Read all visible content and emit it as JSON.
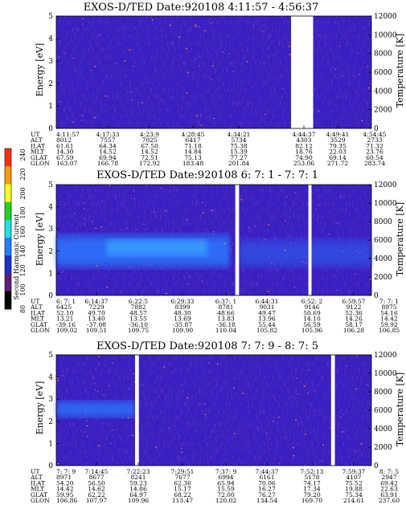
{
  "chart_data": {
    "type": "heatmap",
    "colorbar": {
      "label": "Second Harmonic Current",
      "ticks": [
        "240",
        "220",
        "200",
        "180",
        "160",
        "140",
        "120",
        "100",
        "80"
      ],
      "colors": [
        "#ff3010",
        "#ff9a10",
        "#ffff20",
        "#20d020",
        "#20e0e0",
        "#2080ff",
        "#2030c8",
        "#5a1f78",
        "#000000"
      ]
    },
    "panels": [
      {
        "title": "EXOS-D/TED   Date:920108  4:11:57 - 4:56:37",
        "ylabel": "Energy [eV]",
        "y2label": "Temperature [K]",
        "ylim": [
          0,
          5
        ],
        "y2lim": [
          0,
          12000
        ],
        "yticks": [
          "0",
          "1",
          "2",
          "3",
          "4",
          "5"
        ],
        "y2ticks": [
          "0",
          "2000",
          "4000",
          "6000",
          "8000",
          "10000",
          "12000"
        ],
        "gaps": [
          [
            0.745,
            0.815
          ]
        ],
        "band": null,
        "ephem_labels": [
          "UT",
          "ALT",
          "ILAT",
          "MLT",
          "GLAT",
          "GLON"
        ],
        "columns": [
          [
            "4:11:57",
            "8012",
            "61.61",
            "14.30",
            "67.59",
            "163.07"
          ],
          [
            "4:17:33",
            "7557",
            "64.34",
            "14.52",
            "69.94",
            "166.78"
          ],
          [
            "4:23:9",
            "7025",
            "67.50",
            "14.52",
            "72.51",
            "172.92"
          ],
          [
            "4:28:45",
            "6417",
            "71.18",
            "14.84",
            "75.13",
            "183.48"
          ],
          [
            "4:34:21",
            "5734",
            "75.38",
            "15.39",
            "77.27",
            "201.84"
          ],
          [
            "4:44:37",
            "4303",
            "82.12",
            "18.76",
            "74.90",
            "253.06"
          ],
          [
            "4:49:41",
            "3529",
            "79.35",
            "22.03",
            "69.14",
            "271.72"
          ],
          [
            "4:54:45",
            "2733",
            "71.32",
            "23.76",
            "60.54",
            "283.74"
          ]
        ]
      },
      {
        "title": "EXOS-D/TED   Date:920108  6: 7: 1 - 7: 7: 1",
        "ylabel": "Energy [eV]",
        "y2label": "Temperature [K]",
        "ylim": [
          0,
          5
        ],
        "y2lim": [
          0,
          12000
        ],
        "yticks": [
          "0",
          "1",
          "2",
          "3",
          "4",
          "5"
        ],
        "y2ticks": [
          "0",
          "2000",
          "4000",
          "6000",
          "8000",
          "10000",
          "12000"
        ],
        "gaps": [
          [
            0.568,
            0.58
          ],
          [
            0.8,
            0.81
          ]
        ],
        "band": [
          1.3,
          2.7
        ],
        "ephem_labels": [
          "UT",
          "ALT",
          "ILAT",
          "MLT",
          "GLAT",
          "GLON"
        ],
        "columns": [
          [
            "6: 7: 1",
            "6425",
            "52.10",
            "13.21",
            "-39.16",
            "109.02"
          ],
          [
            "6:14:37",
            "7229",
            "49.70",
            "13.40",
            "-37.08",
            "109.51"
          ],
          [
            "6:22:5",
            "7882",
            "48.57",
            "13.55",
            "-36.10",
            "109.75"
          ],
          [
            "6:29:33",
            "8399",
            "48.30",
            "13.69",
            "-35.87",
            "109.90"
          ],
          [
            "6:37: 1",
            "8781",
            "48.66",
            "13.83",
            "-36.18",
            "110.04"
          ],
          [
            "6:44:31",
            "9031",
            "49.47",
            "13.96",
            "55.44",
            "105.82"
          ],
          [
            "6:52: 2",
            "9146",
            "50.69",
            "14.10",
            "56.59",
            "105.96"
          ],
          [
            "6:59:57",
            "9122",
            "52.36",
            "14.26",
            "58.17",
            "106.28"
          ],
          [
            "7: 7: 1",
            "8975",
            "54.16",
            "14.42",
            "59.92",
            "106.85"
          ]
        ]
      },
      {
        "title": "EXOS-D/TED   Date:920108  7: 7: 9 - 8: 7: 5",
        "ylabel": "Energy [eV]",
        "y2label": "Temperature [K]",
        "ylim": [
          0,
          5
        ],
        "y2lim": [
          0,
          12000
        ],
        "yticks": [
          "0",
          "1",
          "2",
          "3",
          "4",
          "5"
        ],
        "y2ticks": [
          "0",
          "2000",
          "4000",
          "6000",
          "8000",
          "10000",
          "12000"
        ],
        "gaps": [
          [
            0.25,
            0.262
          ],
          [
            0.872,
            0.884
          ]
        ],
        "band": [
          2.2,
          2.9
        ],
        "ephem_labels": [
          "UT",
          "ALT",
          "ILAT",
          "MLT",
          "GLAT",
          "GLON"
        ],
        "columns": [
          [
            "7: 7: 9",
            "8971",
            "54.20",
            "14.42",
            "59.95",
            "106.86"
          ],
          [
            "7:14:45",
            "8677",
            "56.50",
            "14.62",
            "62.22",
            "107.97"
          ],
          [
            "7:22:23",
            "8241",
            "59.23",
            "14.86",
            "64.97",
            "109.96"
          ],
          [
            "7:29:51",
            "7677",
            "62.36",
            "15.17",
            "68.22",
            "113.47"
          ],
          [
            "7:37: 9",
            "6994",
            "65.94",
            "15.59",
            "72.00",
            "120.02"
          ],
          [
            "7:44:37",
            "6161",
            "70.06",
            "16.27",
            "76.27",
            "134.54"
          ],
          [
            "7:52:13",
            "5178",
            "74.17",
            "17.34",
            "79.20",
            "169.70"
          ],
          [
            "7:59:37",
            "4107",
            "75.52",
            "19.88",
            "75.34",
            "214.61"
          ],
          [
            "8: 7: 5",
            "2947",
            "69.42",
            "22.63",
            "63.91",
            "237.60"
          ]
        ]
      }
    ]
  }
}
